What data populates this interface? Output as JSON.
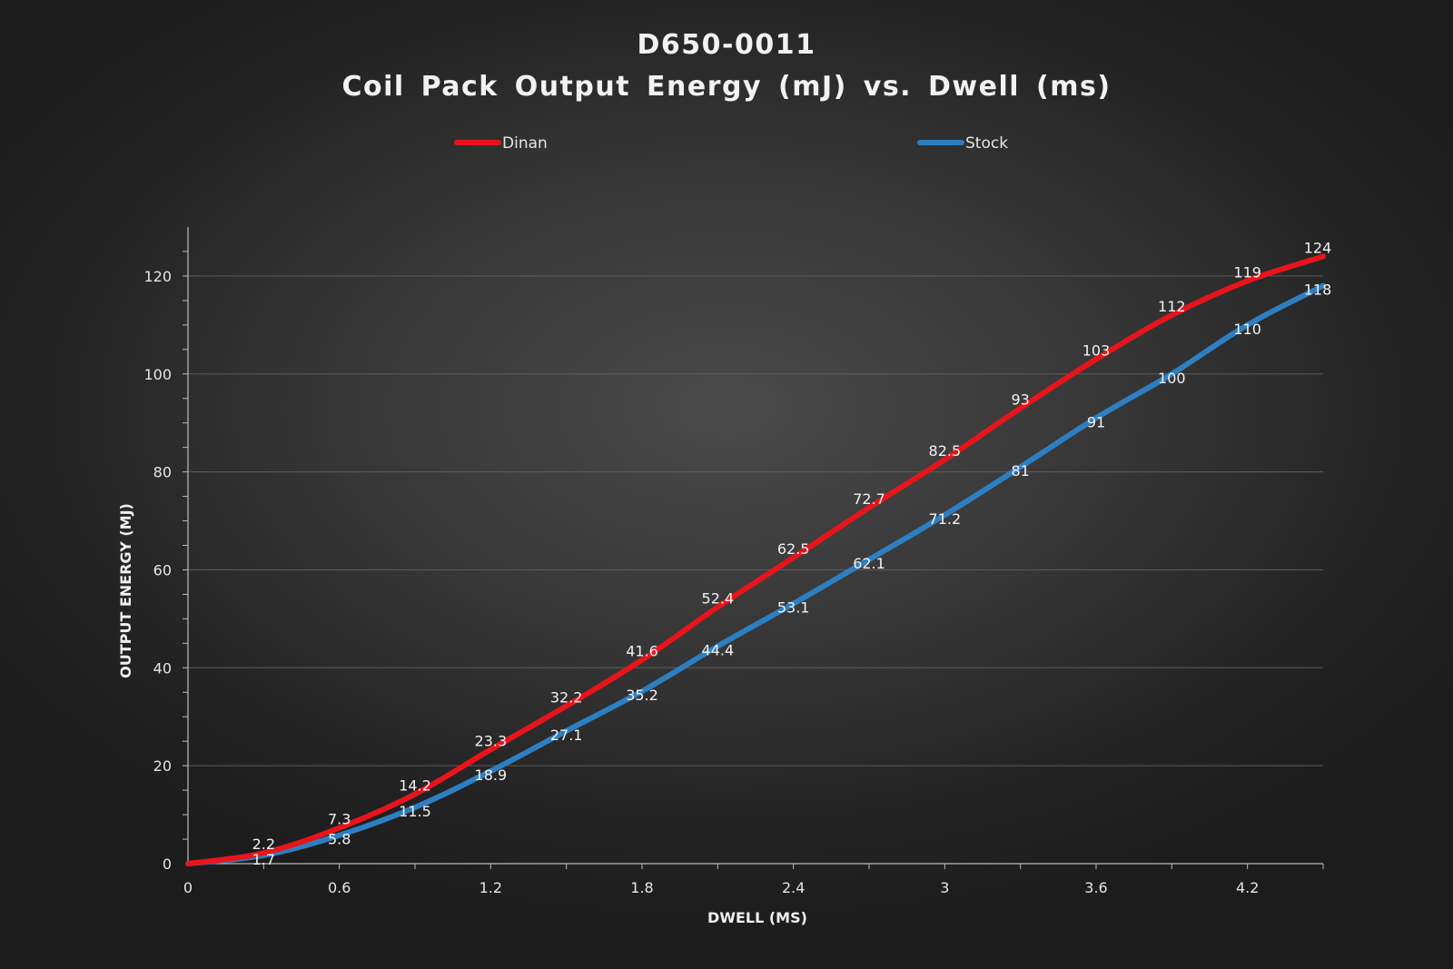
{
  "chart_data": {
    "type": "line",
    "title": "D650-0011",
    "subtitle": "Coil Pack Output  Energy (mJ) vs. Dwell (ms)",
    "xlabel": "DWELL (MS)",
    "ylabel": "OUTPUT ENERGY (MJ)",
    "xlim": [
      0,
      4.5
    ],
    "ylim": [
      0,
      130
    ],
    "x_ticks": [
      "0",
      "0.6",
      "1.2",
      "1.8",
      "2.4",
      "3",
      "3.6",
      "4.2"
    ],
    "y_ticks": [
      "0",
      "20",
      "40",
      "60",
      "80",
      "100",
      "120"
    ],
    "grid": "horizontal",
    "legend": "top",
    "x": [
      0,
      0.3,
      0.6,
      0.9,
      1.2,
      1.5,
      1.8,
      2.1,
      2.4,
      2.7,
      3.0,
      3.3,
      3.6,
      3.9,
      4.2,
      4.5
    ],
    "series": [
      {
        "name": "Dinan",
        "color": "#e8141c",
        "values": [
          0,
          2.2,
          7.3,
          14.2,
          23.3,
          32.2,
          41.6,
          52.4,
          62.5,
          72.7,
          82.5,
          93,
          103,
          112,
          119,
          124
        ],
        "labels": [
          "",
          "2.2",
          "7.3",
          "14.2",
          "23.3",
          "32.2",
          "41.6",
          "52.4",
          "62.5",
          "72.7",
          "82.5",
          "93",
          "103",
          "112",
          "119",
          "124"
        ]
      },
      {
        "name": "Stock",
        "color": "#2e7fc2",
        "values": [
          0,
          1.7,
          5.8,
          11.5,
          18.9,
          27.1,
          35.2,
          44.4,
          53.1,
          62.1,
          71.2,
          81,
          91,
          100,
          110,
          118
        ],
        "labels": [
          "",
          "1.7",
          "5.8",
          "11.5",
          "18.9",
          "27.1",
          "35.2",
          "44.4",
          "53.1",
          "62.1",
          "71.2",
          "81",
          "91",
          "100",
          "110",
          "118"
        ]
      }
    ]
  }
}
